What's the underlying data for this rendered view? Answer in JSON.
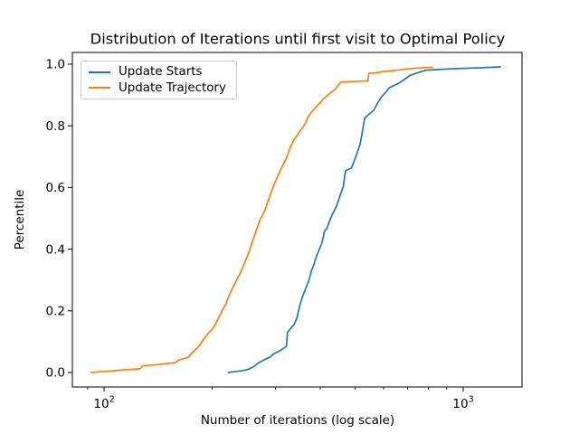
{
  "chart_data": {
    "type": "line",
    "title": "Distribution of Iterations until first visit to Optimal Policy",
    "xlabel": "Number of iterations (log scale)",
    "ylabel": "Percentile",
    "x_scale": "log10",
    "xlim": [
      81.6,
      1458
    ],
    "ylim": [
      -0.047,
      1.038
    ],
    "grid": false,
    "background": "#ffffff",
    "spine_color": "#000000",
    "x_major_ticks": [
      {
        "value": 100,
        "base": "10",
        "exponent": "2"
      },
      {
        "value": 1000,
        "base": "10",
        "exponent": "3"
      }
    ],
    "x_minor_ticks": [
      90,
      200,
      300,
      400,
      500,
      600,
      700,
      800,
      900
    ],
    "y_ticks": [
      {
        "value": 0.0,
        "label": "0.0"
      },
      {
        "value": 0.2,
        "label": "0.2"
      },
      {
        "value": 0.4,
        "label": "0.4"
      },
      {
        "value": 0.6,
        "label": "0.6"
      },
      {
        "value": 0.8,
        "label": "0.8"
      },
      {
        "value": 1.0,
        "label": "1.0"
      }
    ],
    "legend": {
      "position": "upper left",
      "entries": [
        {
          "label": "Update Starts",
          "color": "#1f77b4"
        },
        {
          "label": "Update Trajectory",
          "color": "#ff7f0e"
        }
      ]
    },
    "series": [
      {
        "name": "Update Starts",
        "color": "#1f77b4",
        "points": [
          [
            222,
            0.0
          ],
          [
            232,
            0.003
          ],
          [
            243,
            0.006
          ],
          [
            252,
            0.01
          ],
          [
            262,
            0.02
          ],
          [
            268,
            0.03
          ],
          [
            278,
            0.04
          ],
          [
            290,
            0.05
          ],
          [
            296,
            0.06
          ],
          [
            308,
            0.07
          ],
          [
            318,
            0.08
          ],
          [
            322,
            0.085
          ],
          [
            324,
            0.13
          ],
          [
            330,
            0.142
          ],
          [
            338,
            0.155
          ],
          [
            344,
            0.175
          ],
          [
            348,
            0.2
          ],
          [
            352,
            0.225
          ],
          [
            358,
            0.25
          ],
          [
            365,
            0.275
          ],
          [
            372,
            0.3
          ],
          [
            378,
            0.33
          ],
          [
            384,
            0.35
          ],
          [
            391,
            0.38
          ],
          [
            398,
            0.4
          ],
          [
            404,
            0.42
          ],
          [
            408,
            0.44
          ],
          [
            410,
            0.455
          ],
          [
            418,
            0.47
          ],
          [
            424,
            0.49
          ],
          [
            431,
            0.51
          ],
          [
            444,
            0.54
          ],
          [
            450,
            0.56
          ],
          [
            456,
            0.58
          ],
          [
            464,
            0.605
          ],
          [
            468,
            0.64
          ],
          [
            471,
            0.655
          ],
          [
            488,
            0.663
          ],
          [
            495,
            0.68
          ],
          [
            506,
            0.71
          ],
          [
            516,
            0.74
          ],
          [
            522,
            0.77
          ],
          [
            527,
            0.8
          ],
          [
            532,
            0.825
          ],
          [
            545,
            0.836
          ],
          [
            563,
            0.85
          ],
          [
            578,
            0.875
          ],
          [
            593,
            0.895
          ],
          [
            610,
            0.91
          ],
          [
            622,
            0.923
          ],
          [
            640,
            0.93
          ],
          [
            659,
            0.937
          ],
          [
            685,
            0.95
          ],
          [
            710,
            0.963
          ],
          [
            745,
            0.972
          ],
          [
            784,
            0.98
          ],
          [
            860,
            0.983
          ],
          [
            930,
            0.985
          ],
          [
            1100,
            0.988
          ],
          [
            1270,
            0.991
          ]
        ]
      },
      {
        "name": "Update Trajectory",
        "color": "#ff7f0e",
        "points": [
          [
            92,
            0.0
          ],
          [
            98,
            0.003
          ],
          [
            105,
            0.005
          ],
          [
            112,
            0.008
          ],
          [
            118,
            0.01
          ],
          [
            126,
            0.012
          ],
          [
            128,
            0.022
          ],
          [
            136,
            0.024
          ],
          [
            145,
            0.027
          ],
          [
            152,
            0.03
          ],
          [
            158,
            0.032
          ],
          [
            161,
            0.04
          ],
          [
            168,
            0.046
          ],
          [
            172,
            0.05
          ],
          [
            176,
            0.065
          ],
          [
            180,
            0.075
          ],
          [
            185,
            0.09
          ],
          [
            190,
            0.11
          ],
          [
            196,
            0.13
          ],
          [
            200,
            0.14
          ],
          [
            205,
            0.16
          ],
          [
            209,
            0.18
          ],
          [
            214,
            0.205
          ],
          [
            218,
            0.22
          ],
          [
            221,
            0.24
          ],
          [
            227,
            0.27
          ],
          [
            234,
            0.3
          ],
          [
            240,
            0.325
          ],
          [
            246,
            0.355
          ],
          [
            252,
            0.385
          ],
          [
            258,
            0.42
          ],
          [
            265,
            0.46
          ],
          [
            273,
            0.5
          ],
          [
            279,
            0.52
          ],
          [
            285,
            0.55
          ],
          [
            292,
            0.585
          ],
          [
            300,
            0.62
          ],
          [
            308,
            0.65
          ],
          [
            317,
            0.68
          ],
          [
            323,
            0.7
          ],
          [
            330,
            0.73
          ],
          [
            338,
            0.755
          ],
          [
            345,
            0.77
          ],
          [
            352,
            0.785
          ],
          [
            358,
            0.795
          ],
          [
            364,
            0.81
          ],
          [
            370,
            0.83
          ],
          [
            378,
            0.845
          ],
          [
            385,
            0.855
          ],
          [
            392,
            0.865
          ],
          [
            400,
            0.875
          ],
          [
            410,
            0.89
          ],
          [
            420,
            0.9
          ],
          [
            430,
            0.91
          ],
          [
            439,
            0.917
          ],
          [
            448,
            0.93
          ],
          [
            457,
            0.942
          ],
          [
            500,
            0.944
          ],
          [
            543,
            0.946
          ],
          [
            546,
            0.97
          ],
          [
            570,
            0.972
          ],
          [
            600,
            0.976
          ],
          [
            650,
            0.98
          ],
          [
            700,
            0.985
          ],
          [
            760,
            0.988
          ],
          [
            820,
            0.99
          ]
        ]
      }
    ]
  }
}
